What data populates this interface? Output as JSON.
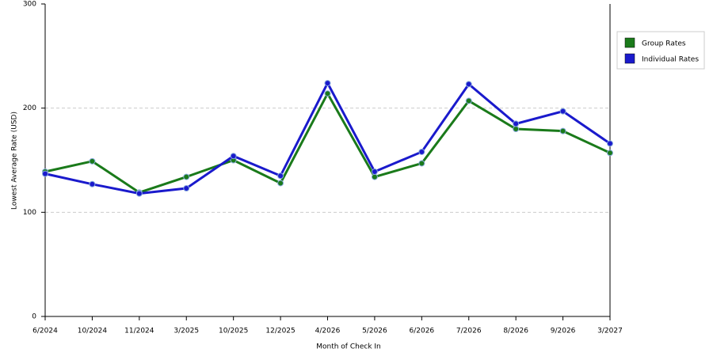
{
  "chart_data": {
    "type": "line",
    "x_label": "Month of Check In",
    "y_label": "Lowest Average Rate (USD)",
    "categories": [
      "6/2024",
      "10/2024",
      "11/2024",
      "3/2025",
      "10/2025",
      "12/2025",
      "4/2026",
      "5/2026",
      "6/2026",
      "7/2026",
      "8/2026",
      "9/2026",
      "3/2027"
    ],
    "series": [
      {
        "name": "Group Rates",
        "color": "#1a7a1a",
        "values": [
          139,
          149,
          119,
          134,
          150,
          128,
          214,
          134,
          147,
          207,
          180,
          178,
          157
        ]
      },
      {
        "name": "Individual Rates",
        "color": "#1a1acc",
        "values": [
          137,
          127,
          118,
          123,
          154,
          135,
          224,
          139,
          158,
          223,
          185,
          197,
          166
        ]
      }
    ],
    "ylim": [
      0,
      300
    ],
    "yticks": [
      0,
      100,
      200,
      300
    ],
    "grid": true,
    "legend": "right"
  }
}
